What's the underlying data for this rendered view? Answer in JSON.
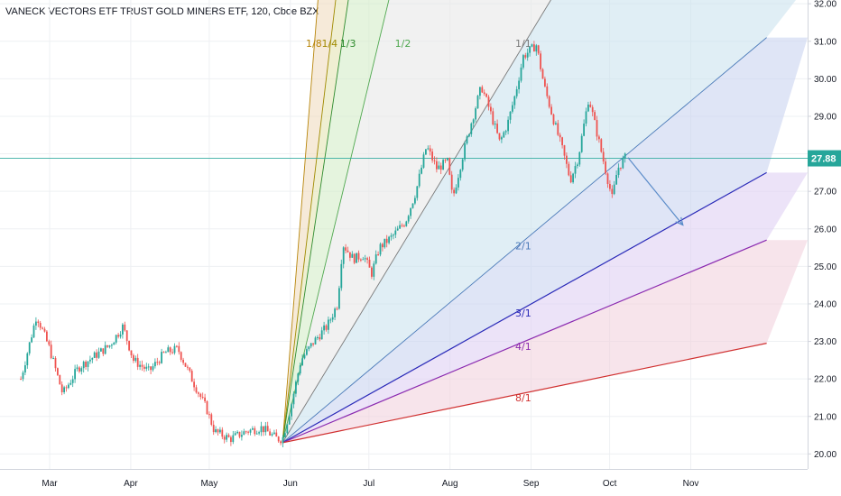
{
  "chart_data": {
    "type": "candlestick",
    "title": "VANECK VECTORS ETF TRUST GOLD MINERS ETF, 120, Cboe BZX",
    "ylim": [
      19.6,
      32.1
    ],
    "y_ticks": [
      "20.00",
      "21.00",
      "22.00",
      "23.00",
      "24.00",
      "25.00",
      "26.00",
      "27.00",
      "28.00",
      "29.00",
      "30.00",
      "31.00",
      "32.00"
    ],
    "x_ticks": [
      "Mar",
      "Apr",
      "May",
      "Jun",
      "Jul",
      "Aug",
      "Sep",
      "Oct",
      "Nov"
    ],
    "last_price": "27.88",
    "colors": {
      "up": "#26a69a",
      "down": "#ef5350",
      "price_line": "#26a69a",
      "arrow": "#5b8cc9"
    },
    "price_path": [
      {
        "x": "Feb 18",
        "y": 22.0
      },
      {
        "x": "Feb 24",
        "y": 23.7
      },
      {
        "x": "Mar 1",
        "y": 22.8
      },
      {
        "x": "Mar 6",
        "y": 21.6
      },
      {
        "x": "Mar 12",
        "y": 22.3
      },
      {
        "x": "Mar 18",
        "y": 22.6
      },
      {
        "x": "Mar 24",
        "y": 22.9
      },
      {
        "x": "Mar 29",
        "y": 23.4
      },
      {
        "x": "Apr 2",
        "y": 22.5
      },
      {
        "x": "Apr 8",
        "y": 22.2
      },
      {
        "x": "Apr 14",
        "y": 22.7
      },
      {
        "x": "Apr 19",
        "y": 22.8
      },
      {
        "x": "Apr 25",
        "y": 21.9
      },
      {
        "x": "Apr 30",
        "y": 21.2
      },
      {
        "x": "May 3",
        "y": 20.6
      },
      {
        "x": "May 9",
        "y": 20.4
      },
      {
        "x": "May 15",
        "y": 20.6
      },
      {
        "x": "May 21",
        "y": 20.7
      },
      {
        "x": "May 27",
        "y": 20.4
      },
      {
        "x": "May 29",
        "y": 20.4
      },
      {
        "x": "Jun 1",
        "y": 21.2
      },
      {
        "x": "Jun 5",
        "y": 22.5
      },
      {
        "x": "Jun 10",
        "y": 23.0
      },
      {
        "x": "Jun 15",
        "y": 23.4
      },
      {
        "x": "Jun 19",
        "y": 24.0
      },
      {
        "x": "Jun 21",
        "y": 25.6
      },
      {
        "x": "Jun 25",
        "y": 25.2
      },
      {
        "x": "Jun 29",
        "y": 25.3
      },
      {
        "x": "Jul 2",
        "y": 24.8
      },
      {
        "x": "Jul 5",
        "y": 25.5
      },
      {
        "x": "Jul 10",
        "y": 25.8
      },
      {
        "x": "Jul 15",
        "y": 26.2
      },
      {
        "x": "Jul 19",
        "y": 27.0
      },
      {
        "x": "Jul 23",
        "y": 28.2
      },
      {
        "x": "Jul 27",
        "y": 27.6
      },
      {
        "x": "Jul 31",
        "y": 27.8
      },
      {
        "x": "Aug 2",
        "y": 26.8
      },
      {
        "x": "Aug 6",
        "y": 28.0
      },
      {
        "x": "Aug 9",
        "y": 28.8
      },
      {
        "x": "Aug 13",
        "y": 29.8
      },
      {
        "x": "Aug 16",
        "y": 29.2
      },
      {
        "x": "Aug 20",
        "y": 28.3
      },
      {
        "x": "Aug 23",
        "y": 28.8
      },
      {
        "x": "Aug 26",
        "y": 29.6
      },
      {
        "x": "Aug 29",
        "y": 30.6
      },
      {
        "x": "Sep 3",
        "y": 30.9
      },
      {
        "x": "Sep 6",
        "y": 29.8
      },
      {
        "x": "Sep 10",
        "y": 28.8
      },
      {
        "x": "Sep 13",
        "y": 28.1
      },
      {
        "x": "Sep 16",
        "y": 27.3
      },
      {
        "x": "Sep 19",
        "y": 27.9
      },
      {
        "x": "Sep 23",
        "y": 29.5
      },
      {
        "x": "Sep 27",
        "y": 28.3
      },
      {
        "x": "Sep 30",
        "y": 27.4
      },
      {
        "x": "Oct 2",
        "y": 26.8
      },
      {
        "x": "Oct 4",
        "y": 27.6
      },
      {
        "x": "Oct 7",
        "y": 27.9
      }
    ],
    "gann_fan": {
      "origin": {
        "x": "May 29",
        "y": 20.3
      },
      "lines": [
        {
          "label": "1/8",
          "end": {
            "x": "Jun 12",
            "y": 32.5
          },
          "color": "#b8860b",
          "fill": "#f0dcc0"
        },
        {
          "label": "1/4",
          "end": {
            "x": "Jun 19",
            "y": 32.5
          },
          "color": "#a08a00",
          "fill": "#e4e4b4"
        },
        {
          "label": "1/3",
          "end": {
            "x": "Jun 24",
            "y": 32.5
          },
          "color": "#2e8b2e",
          "fill": "#d4ecc8"
        },
        {
          "label": "1/2",
          "end": {
            "x": "Jul 10",
            "y": 32.5
          },
          "color": "#50a850",
          "fill": "#e8e8e8"
        },
        {
          "label": "1/1",
          "end": {
            "x": "Sep 12",
            "y": 32.5
          },
          "color": "#7a7a7a",
          "fill": "#cce3ef"
        },
        {
          "label": "2/1",
          "end": {
            "x": "Nov 30",
            "y": 31.1
          },
          "color": "#4a7ab8",
          "fill": "#c9d3f0"
        },
        {
          "label": "3/1",
          "end": {
            "x": "Nov 30",
            "y": 27.5
          },
          "color": "#2a2ab8",
          "fill": "#e0d0f4"
        },
        {
          "label": "4/1",
          "end": {
            "x": "Nov 30",
            "y": 25.7
          },
          "color": "#8a2ab0",
          "fill": "#f2d2de"
        },
        {
          "label": "8/1",
          "end": {
            "x": "Nov 30",
            "y": 22.95
          },
          "color": "#d03030",
          "fill": null
        }
      ]
    },
    "arrow": {
      "from": {
        "x": "Oct 8",
        "y": 27.9
      },
      "to": {
        "x": "Oct 29",
        "y": 26.1
      }
    }
  }
}
